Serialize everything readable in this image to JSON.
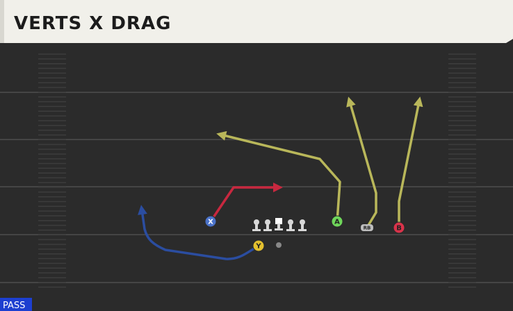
{
  "header": {
    "title": "VERTS X DRAG"
  },
  "footer": {
    "tag": "PASS"
  },
  "players": [
    {
      "label": "X"
    },
    {
      "label": "Y"
    },
    {
      "label": "A"
    },
    {
      "label": "RB"
    },
    {
      "label": "B"
    }
  ]
}
